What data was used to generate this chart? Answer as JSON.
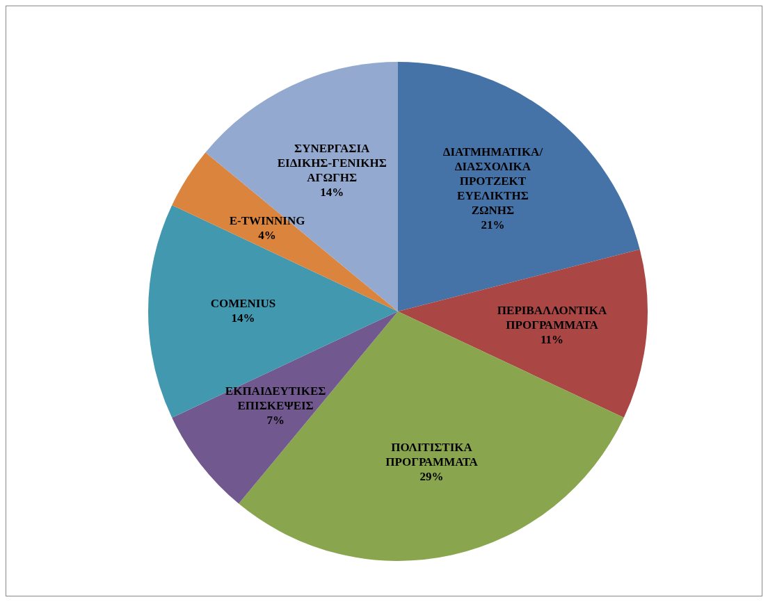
{
  "chart_data": {
    "type": "pie",
    "categories": [
      "ΔΙΑΤΜΗΜΑΤΙΚΑ/ ΔΙΑΣΧΟΛΙΚΑ ΠΡΟΤΖΕΚΤ ΕΥΕΛΙΚΤΗΣ ΖΩΝΗΣ",
      "ΠΕΡΙΒΑΛΛΟΝΤΙΚΑ ΠΡΟΓΡΑΜΜΑΤΑ",
      "ΠΟΛΙΤΙΣΤΙΚΑ ΠΡΟΓΡΑΜΜΑΤΑ",
      "ΕΚΠΑΙΔΕΥΤΙΚΕΣ ΕΠΙΣΚΕΨΕΙΣ",
      "COMENIUS",
      "E-TWINNING",
      "ΣΥΝΕΡΓΑΣΙΑ ΕΙΔΙΚΗΣ-ΓΕΝΙΚΗΣ ΑΓΩΓΗΣ"
    ],
    "values": [
      21,
      11,
      29,
      7,
      14,
      4,
      14
    ],
    "value_labels": [
      "21%",
      "11%",
      "29%",
      "7%",
      "14%",
      "4%",
      "14%"
    ],
    "colors": [
      "#4572a7",
      "#aa4643",
      "#89a54e",
      "#71588f",
      "#4198af",
      "#db843d",
      "#93a9cf"
    ],
    "legend": false
  }
}
